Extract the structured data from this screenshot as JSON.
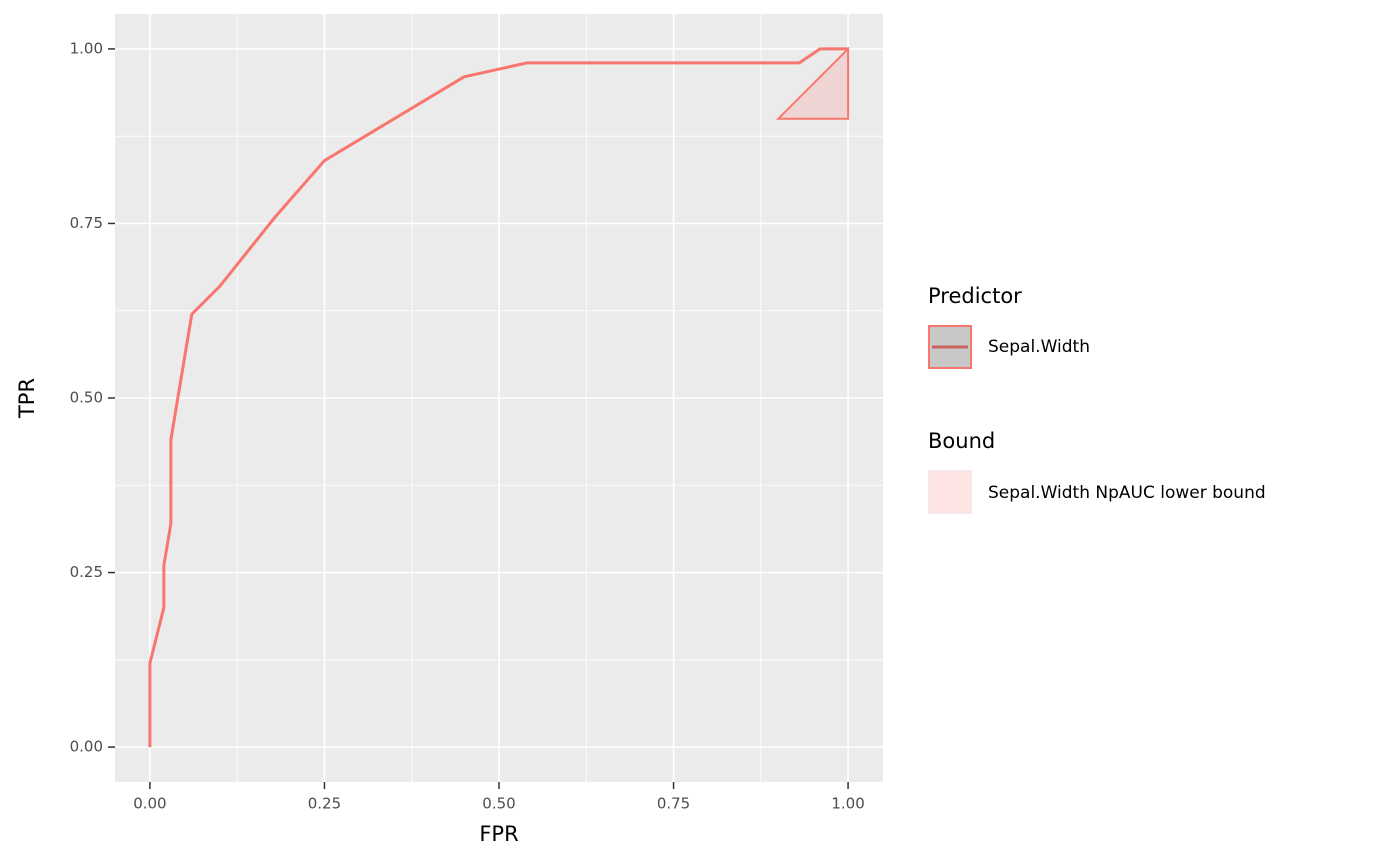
{
  "chart_data": {
    "type": "line",
    "xlabel": "FPR",
    "ylabel": "TPR",
    "xlim": [
      -0.05,
      1.05
    ],
    "ylim": [
      -0.05,
      1.05
    ],
    "xticks": [
      {
        "value": 0,
        "label": "0.00"
      },
      {
        "value": 0.25,
        "label": "0.25"
      },
      {
        "value": 0.5,
        "label": "0.50"
      },
      {
        "value": 0.75,
        "label": "0.75"
      },
      {
        "value": 1,
        "label": "1.00"
      }
    ],
    "yticks": [
      {
        "value": 0,
        "label": "0.00"
      },
      {
        "value": 0.25,
        "label": "0.25"
      },
      {
        "value": 0.5,
        "label": "0.50"
      },
      {
        "value": 0.75,
        "label": "0.75"
      },
      {
        "value": 1,
        "label": "1.00"
      }
    ],
    "grid": true,
    "legend_position": "right",
    "legend_titles": [
      "Predictor",
      "Bound"
    ],
    "series": [
      {
        "name": "Sepal.Width",
        "color": "#F8766D",
        "x": [
          0,
          0,
          0.02,
          0.02,
          0.03,
          0.03,
          0.06,
          0.1,
          0.18,
          0.25,
          0.45,
          0.54,
          0.93,
          0.96,
          1.0
        ],
        "values": [
          0,
          0.12,
          0.2,
          0.26,
          0.32,
          0.44,
          0.62,
          0.66,
          0.76,
          0.84,
          0.96,
          0.98,
          0.98,
          1.0,
          1.0
        ]
      }
    ],
    "bound": {
      "name": "Sepal.Width NpAUC lower bound",
      "color": "#F8766D",
      "x": [
        0.9,
        1,
        1
      ],
      "values": [
        0.9,
        1,
        0.9
      ]
    }
  }
}
